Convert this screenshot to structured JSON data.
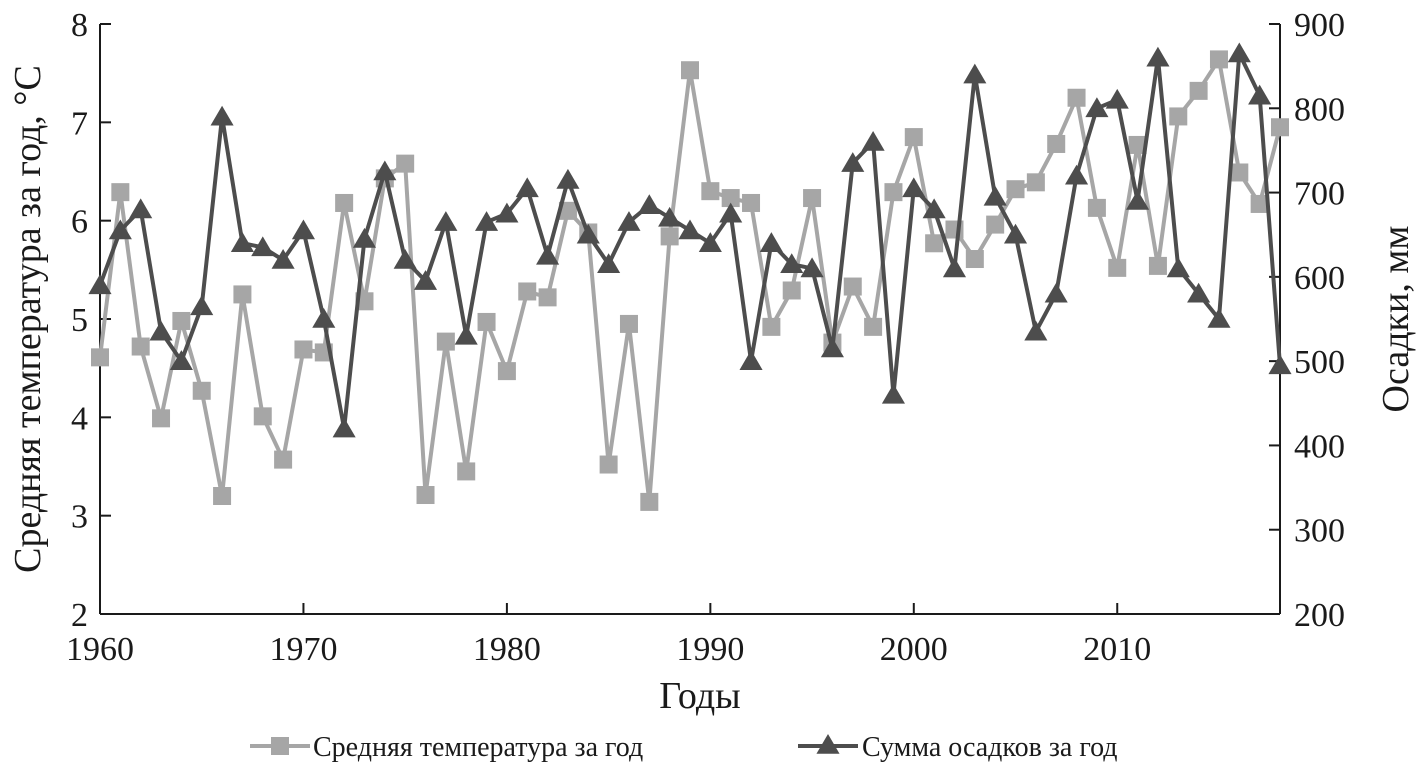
{
  "chart_data": {
    "type": "line",
    "xlabel": "Годы",
    "ylabel_left": "Средняя температура за год, °C",
    "ylabel_right": "Осадки, мм",
    "xlim": [
      1960,
      2018
    ],
    "ylim_left": [
      2,
      8
    ],
    "ylim_right": [
      200,
      900
    ],
    "x_ticks": [
      1960,
      1970,
      1980,
      1990,
      2000,
      2010
    ],
    "y_ticks_left": [
      2,
      3,
      4,
      5,
      6,
      7,
      8
    ],
    "y_ticks_right": [
      200,
      300,
      400,
      500,
      600,
      700,
      800,
      900
    ],
    "grid": false,
    "legend_position": "bottom",
    "x": [
      1960,
      1961,
      1962,
      1963,
      1964,
      1965,
      1966,
      1967,
      1968,
      1969,
      1970,
      1971,
      1972,
      1973,
      1974,
      1975,
      1976,
      1977,
      1978,
      1979,
      1980,
      1981,
      1982,
      1983,
      1984,
      1985,
      1986,
      1987,
      1988,
      1989,
      1990,
      1991,
      1992,
      1993,
      1994,
      1995,
      1996,
      1997,
      1998,
      1999,
      2000,
      2001,
      2002,
      2003,
      2004,
      2005,
      2006,
      2007,
      2008,
      2009,
      2010,
      2011,
      2012,
      2013,
      2014,
      2015,
      2016,
      2017,
      2018
    ],
    "series": [
      {
        "name": "Средняя температура за год",
        "axis": "left",
        "color": "#a6a6a6",
        "marker": "square",
        "values": [
          4.61,
          6.29,
          4.72,
          3.99,
          4.98,
          4.27,
          3.2,
          5.25,
          4.01,
          3.57,
          4.69,
          4.66,
          6.18,
          5.18,
          6.43,
          6.58,
          3.21,
          4.77,
          3.45,
          4.97,
          4.47,
          5.28,
          5.22,
          6.1,
          5.88,
          3.52,
          4.95,
          3.14,
          5.84,
          7.53,
          6.3,
          6.23,
          6.18,
          4.92,
          5.29,
          6.23,
          4.76,
          5.33,
          4.92,
          6.29,
          6.85,
          5.77,
          5.91,
          5.61,
          5.96,
          6.32,
          6.39,
          6.78,
          7.25,
          6.13,
          5.52,
          6.77,
          5.54,
          7.06,
          7.32,
          7.64,
          6.49,
          6.17,
          6.95
        ]
      },
      {
        "name": "Сумма осадков за год",
        "axis": "right",
        "color": "#4d4d4d",
        "marker": "triangle",
        "values": [
          590,
          655,
          680,
          535,
          500,
          565,
          790,
          640,
          635,
          620,
          655,
          550,
          420,
          645,
          725,
          620,
          595,
          665,
          530,
          665,
          675,
          705,
          625,
          715,
          650,
          615,
          665,
          685,
          670,
          655,
          640,
          675,
          500,
          640,
          615,
          610,
          515,
          735,
          760,
          460,
          705,
          680,
          610,
          840,
          695,
          650,
          535,
          580,
          720,
          800,
          810,
          690,
          860,
          610,
          580,
          550,
          865,
          815,
          495
        ]
      }
    ]
  }
}
